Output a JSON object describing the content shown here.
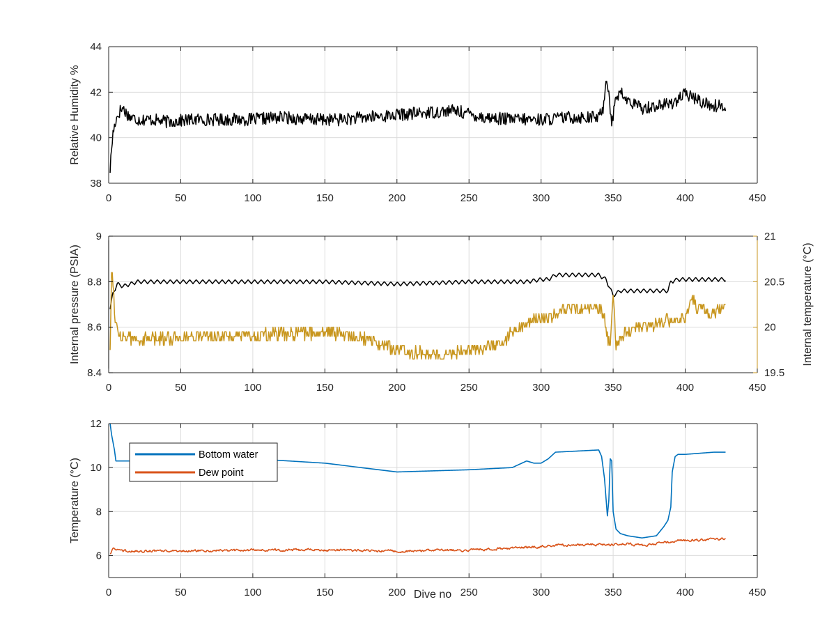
{
  "figure": {
    "xlabel": "Dive no"
  },
  "chart_data": [
    {
      "type": "line",
      "title": "",
      "xlabel": "",
      "ylabel": "Relative Humidity %",
      "xlim": [
        0,
        450
      ],
      "ylim": [
        38,
        44
      ],
      "xticks": [
        0,
        50,
        100,
        150,
        200,
        250,
        300,
        350,
        400,
        450
      ],
      "yticks": [
        38,
        40,
        42,
        44
      ],
      "grid": true,
      "series": [
        {
          "color": "#000000",
          "noise": 0.28,
          "x": [
            1,
            2,
            3,
            5,
            8,
            10,
            12,
            15,
            20,
            30,
            40,
            60,
            80,
            100,
            120,
            140,
            160,
            180,
            200,
            220,
            240,
            260,
            280,
            300,
            320,
            340,
            343,
            345,
            347,
            349,
            350,
            352,
            355,
            360,
            370,
            380,
            390,
            400,
            405,
            410,
            420,
            428
          ],
          "values": [
            38.6,
            39.5,
            40.2,
            40.8,
            41.2,
            41.3,
            41.1,
            40.9,
            40.8,
            40.8,
            40.7,
            40.8,
            40.8,
            40.8,
            40.9,
            40.8,
            40.8,
            40.9,
            41.0,
            41.1,
            41.2,
            40.9,
            40.8,
            40.8,
            40.9,
            40.9,
            41.3,
            42.5,
            42.2,
            40.4,
            41.0,
            41.8,
            42.0,
            41.6,
            41.3,
            41.4,
            41.5,
            41.9,
            41.8,
            41.6,
            41.4,
            41.4
          ]
        }
      ]
    },
    {
      "type": "line",
      "title": "",
      "xlabel": "",
      "ylabel": "Internal pressure (PSIA)",
      "ylabel_right": "Internal temperature (°C)",
      "xlim": [
        0,
        450
      ],
      "ylim": [
        8.4,
        9.0
      ],
      "ylim_right": [
        19.5,
        21.0
      ],
      "xticks": [
        0,
        50,
        100,
        150,
        200,
        250,
        300,
        350,
        400,
        450
      ],
      "yticks": [
        8.4,
        8.6,
        8.8,
        9.0
      ],
      "yticks_right": [
        19.5,
        20.0,
        20.5,
        21.0
      ],
      "ytick_labels": [
        "8.4",
        "8.6",
        "8.8",
        "9"
      ],
      "ytick_labels_right": [
        "19.5",
        "20",
        "20.5",
        "21"
      ],
      "grid": true,
      "series": [
        {
          "axis": "left",
          "color": "#000000",
          "wiggle": 0.018,
          "x": [
            1,
            3,
            6,
            10,
            20,
            50,
            100,
            150,
            200,
            250,
            290,
            300,
            305,
            310,
            330,
            340,
            345,
            350,
            355,
            360,
            380,
            388,
            390,
            395,
            400,
            428
          ],
          "values": [
            8.68,
            8.75,
            8.79,
            8.78,
            8.8,
            8.8,
            8.8,
            8.8,
            8.79,
            8.8,
            8.8,
            8.81,
            8.81,
            8.83,
            8.83,
            8.83,
            8.81,
            8.74,
            8.76,
            8.76,
            8.76,
            8.76,
            8.8,
            8.81,
            8.81,
            8.81
          ]
        },
        {
          "axis": "right",
          "color": "#C8961E",
          "step": 0.05,
          "noise": 0.07,
          "x": [
            1,
            2,
            3,
            4,
            6,
            10,
            20,
            50,
            100,
            150,
            175,
            200,
            230,
            250,
            270,
            285,
            300,
            320,
            340,
            344,
            346,
            348,
            350,
            352,
            355,
            360,
            380,
            400,
            405,
            410,
            420,
            428
          ],
          "values": [
            19.8,
            20.6,
            20.5,
            20.2,
            19.95,
            19.9,
            19.85,
            19.9,
            19.9,
            19.95,
            19.9,
            19.75,
            19.7,
            19.75,
            19.8,
            20.0,
            20.1,
            20.2,
            20.2,
            20.15,
            19.9,
            19.8,
            20.4,
            19.8,
            19.9,
            19.95,
            20.05,
            20.1,
            20.3,
            20.2,
            20.15,
            20.2
          ]
        }
      ]
    },
    {
      "type": "line",
      "title": "",
      "xlabel": "Dive no",
      "ylabel": "Temperature (°C)",
      "xlim": [
        0,
        450
      ],
      "ylim": [
        5,
        12
      ],
      "xticks": [
        0,
        50,
        100,
        150,
        200,
        250,
        300,
        350,
        400,
        450
      ],
      "yticks": [
        6,
        8,
        10,
        12
      ],
      "grid": true,
      "legend_position": "top-left",
      "series": [
        {
          "name": "Bottom water",
          "color": "#0072BD",
          "noise": 0.0,
          "x": [
            1,
            2,
            4,
            5,
            20,
            60,
            100,
            150,
            200,
            250,
            280,
            290,
            295,
            300,
            305,
            310,
            340,
            342,
            344,
            346,
            347,
            348,
            349,
            350,
            352,
            355,
            360,
            370,
            380,
            385,
            388,
            390,
            391,
            393,
            395,
            400,
            420,
            428
          ],
          "values": [
            12.0,
            11.5,
            10.8,
            10.3,
            10.3,
            10.4,
            10.4,
            10.2,
            9.8,
            9.9,
            10.0,
            10.3,
            10.2,
            10.2,
            10.4,
            10.7,
            10.8,
            10.5,
            9.5,
            7.8,
            8.5,
            10.4,
            10.3,
            8.0,
            7.2,
            7.0,
            6.9,
            6.8,
            6.9,
            7.3,
            7.6,
            8.2,
            9.8,
            10.5,
            10.6,
            10.6,
            10.7,
            10.7
          ]
        },
        {
          "name": "Dew point",
          "color": "#D95319",
          "noise": 0.1,
          "x": [
            1,
            3,
            10,
            50,
            100,
            150,
            200,
            250,
            300,
            320,
            350,
            360,
            370,
            380,
            400,
            428
          ],
          "values": [
            6.1,
            6.3,
            6.2,
            6.2,
            6.25,
            6.25,
            6.2,
            6.25,
            6.4,
            6.5,
            6.5,
            6.55,
            6.45,
            6.55,
            6.7,
            6.75
          ]
        }
      ]
    }
  ]
}
